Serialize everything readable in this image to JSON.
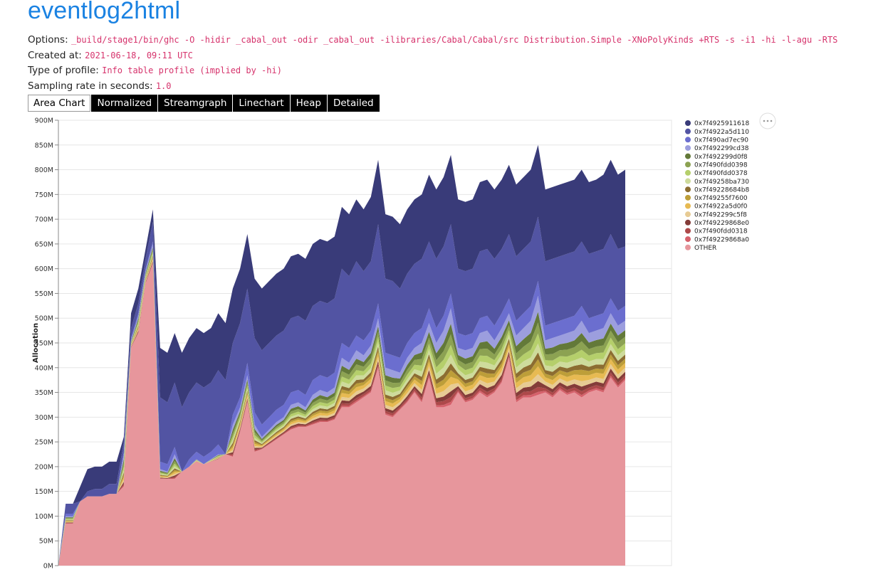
{
  "header": {
    "title": "eventlog2html"
  },
  "meta": {
    "options_label": "Options:",
    "options_value": "_build/stage1/bin/ghc -O -hidir _cabal_out -odir _cabal_out -ilibraries/Cabal/Cabal/src Distribution.Simple -XNoPolyKinds +RTS -s -i1 -hi -l-agu -RTS",
    "created_label": "Created at:",
    "created_value": "2021-06-18, 09:11 UTC",
    "profile_label": "Type of profile:",
    "profile_value": "Info table profile (implied by -hi)",
    "sampling_label": "Sampling rate in seconds:",
    "sampling_value": "1.0"
  },
  "tabs": [
    {
      "label": "Area Chart",
      "active": true
    },
    {
      "label": "Normalized",
      "active": false
    },
    {
      "label": "Streamgraph",
      "active": false
    },
    {
      "label": "Linechart",
      "active": false
    },
    {
      "label": "Heap",
      "active": false
    },
    {
      "label": "Detailed",
      "active": false
    }
  ],
  "chart_data": {
    "type": "area",
    "ylabel": "Allocation",
    "y_ticks": [
      "0M",
      "50M",
      "100M",
      "150M",
      "200M",
      "250M",
      "300M",
      "350M",
      "400M",
      "450M",
      "500M",
      "550M",
      "600M",
      "650M",
      "700M",
      "750M",
      "800M",
      "850M",
      "900M"
    ],
    "ylim": [
      0,
      900
    ],
    "grid": true,
    "legend": "right",
    "series_names": [
      "0x7f4925911618",
      "0x7f4922a5d110",
      "0x7f490ad7ec90",
      "0x7f492299cd38",
      "0x7f492299d0f8",
      "0x7f490fdd0398",
      "0x7f490fdd0378",
      "0x7f49258ba730",
      "0x7f49228684b8",
      "0x7f49255f7600",
      "0x7f4922a5d0f0",
      "0x7f492299c5f8",
      "0x7f49229868e0",
      "0x7f490fdd0318",
      "0x7f49229868a0",
      "OTHER"
    ],
    "colors": [
      "#393b79",
      "#5254a3",
      "#6b6ecf",
      "#9c9ede",
      "#637939",
      "#8ca252",
      "#b5cf6b",
      "#cedb9c",
      "#8c6d31",
      "#bd9e39",
      "#e7ba52",
      "#e7cb94",
      "#843c39",
      "#ad494a",
      "#d6616b",
      "#e7969c"
    ],
    "totals": [
      0,
      125,
      125,
      160,
      195,
      200,
      200,
      210,
      210,
      260,
      510,
      560,
      640,
      720,
      440,
      430,
      470,
      430,
      460,
      480,
      470,
      480,
      510,
      490,
      560,
      600,
      670,
      580,
      560,
      575,
      590,
      600,
      625,
      630,
      620,
      650,
      660,
      655,
      665,
      725,
      710,
      740,
      720,
      745,
      820,
      710,
      705,
      690,
      720,
      740,
      750,
      790,
      760,
      785,
      830,
      740,
      735,
      740,
      775,
      780,
      760,
      780,
      810,
      770,
      785,
      800,
      850,
      760,
      765,
      770,
      775,
      780,
      800,
      775,
      780,
      790,
      820,
      790,
      800
    ],
    "other": [
      0,
      85,
      85,
      130,
      140,
      140,
      140,
      145,
      145,
      160,
      440,
      470,
      570,
      610,
      175,
      175,
      175,
      190,
      200,
      210,
      205,
      210,
      215,
      225,
      220,
      270,
      330,
      230,
      235,
      245,
      255,
      265,
      275,
      280,
      280,
      285,
      290,
      290,
      295,
      320,
      320,
      330,
      340,
      350,
      400,
      305,
      300,
      315,
      330,
      350,
      330,
      380,
      320,
      320,
      325,
      350,
      330,
      335,
      350,
      340,
      350,
      370,
      420,
      330,
      340,
      340,
      345,
      350,
      340,
      355,
      345,
      350,
      340,
      350,
      355,
      350,
      380,
      360,
      375
    ],
    "top": [
      0,
      0,
      0,
      35,
      45,
      45,
      45,
      45,
      45,
      10,
      30,
      30,
      20,
      25,
      100,
      100,
      100,
      110,
      110,
      110,
      110,
      110,
      115,
      115,
      110,
      110,
      110,
      120,
      125,
      125,
      125,
      125,
      125,
      125,
      125,
      125,
      125,
      125,
      125,
      125,
      125,
      125,
      125,
      130,
      130,
      130,
      130,
      130,
      130,
      130,
      130,
      135,
      140,
      140,
      140,
      140,
      140,
      140,
      140,
      140,
      140,
      140,
      140,
      145,
      145,
      145,
      145,
      145,
      145,
      145,
      145,
      145,
      145,
      145,
      145,
      150,
      150,
      150,
      155
    ],
    "blue2": [
      0,
      20,
      20,
      20,
      20,
      20,
      20,
      20,
      20,
      20,
      20,
      20,
      20,
      40,
      130,
      125,
      130,
      130,
      135,
      140,
      140,
      140,
      150,
      150,
      145,
      150,
      150,
      150,
      150,
      150,
      150,
      150,
      150,
      150,
      150,
      150,
      150,
      150,
      150,
      150,
      145,
      150,
      140,
      140,
      160,
      150,
      150,
      140,
      140,
      140,
      140,
      135,
      140,
      140,
      140,
      130,
      130,
      130,
      135,
      135,
      135,
      130,
      130,
      130,
      130,
      130,
      130,
      130,
      130,
      130,
      130,
      130,
      130,
      130,
      130,
      130,
      130,
      125,
      120
    ],
    "blue3": [
      0,
      5,
      5,
      5,
      5,
      5,
      5,
      5,
      5,
      5,
      5,
      5,
      5,
      5,
      15,
      15,
      15,
      15,
      15,
      15,
      15,
      15,
      20,
      20,
      20,
      20,
      25,
      25,
      25,
      25,
      25,
      25,
      25,
      25,
      25,
      30,
      30,
      30,
      30,
      30,
      30,
      30,
      30,
      30,
      30,
      30,
      30,
      30,
      30,
      30,
      30,
      30,
      30,
      30,
      30,
      30,
      30,
      30,
      30,
      30,
      30,
      30,
      30,
      30,
      30,
      30,
      30,
      30,
      30,
      30,
      30,
      30,
      30,
      30,
      30,
      30,
      30,
      30,
      30
    ]
  }
}
